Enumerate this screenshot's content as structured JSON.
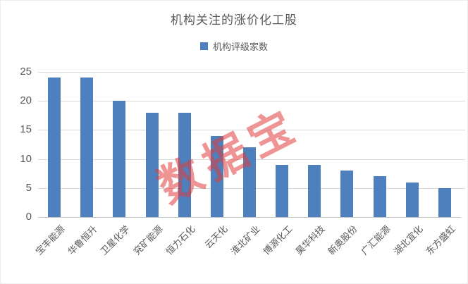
{
  "title": "机构关注的涨价化工股",
  "legend": {
    "label": "机构评级家数"
  },
  "watermark": "数据宝",
  "colors": {
    "bar": "#4d80bc",
    "text": "#595959",
    "gridline": "#d9d9d9",
    "axis_line": "#c6c6c6",
    "watermark": "rgba(226,61,61,0.55)"
  },
  "chart_data": {
    "type": "bar",
    "title": "机构关注的涨价化工股",
    "series_name": "机构评级家数",
    "categories": [
      "宝丰能源",
      "华鲁恒升",
      "卫星化学",
      "兖矿能源",
      "恒力石化",
      "云天化",
      "淮北矿业",
      "博源化工",
      "昊华科技",
      "新奥股份",
      "广汇能源",
      "湖北宜化",
      "东方盛虹"
    ],
    "values": [
      24,
      24,
      20,
      18,
      18,
      14,
      12,
      9,
      9,
      8,
      7,
      6,
      5
    ],
    "xlabel": "",
    "ylabel": "",
    "ylim": [
      0,
      25
    ],
    "yticks": [
      0,
      5,
      10,
      15,
      20,
      25
    ],
    "grid": true,
    "legend_position": "top",
    "bar_color": "#4d80bc"
  }
}
